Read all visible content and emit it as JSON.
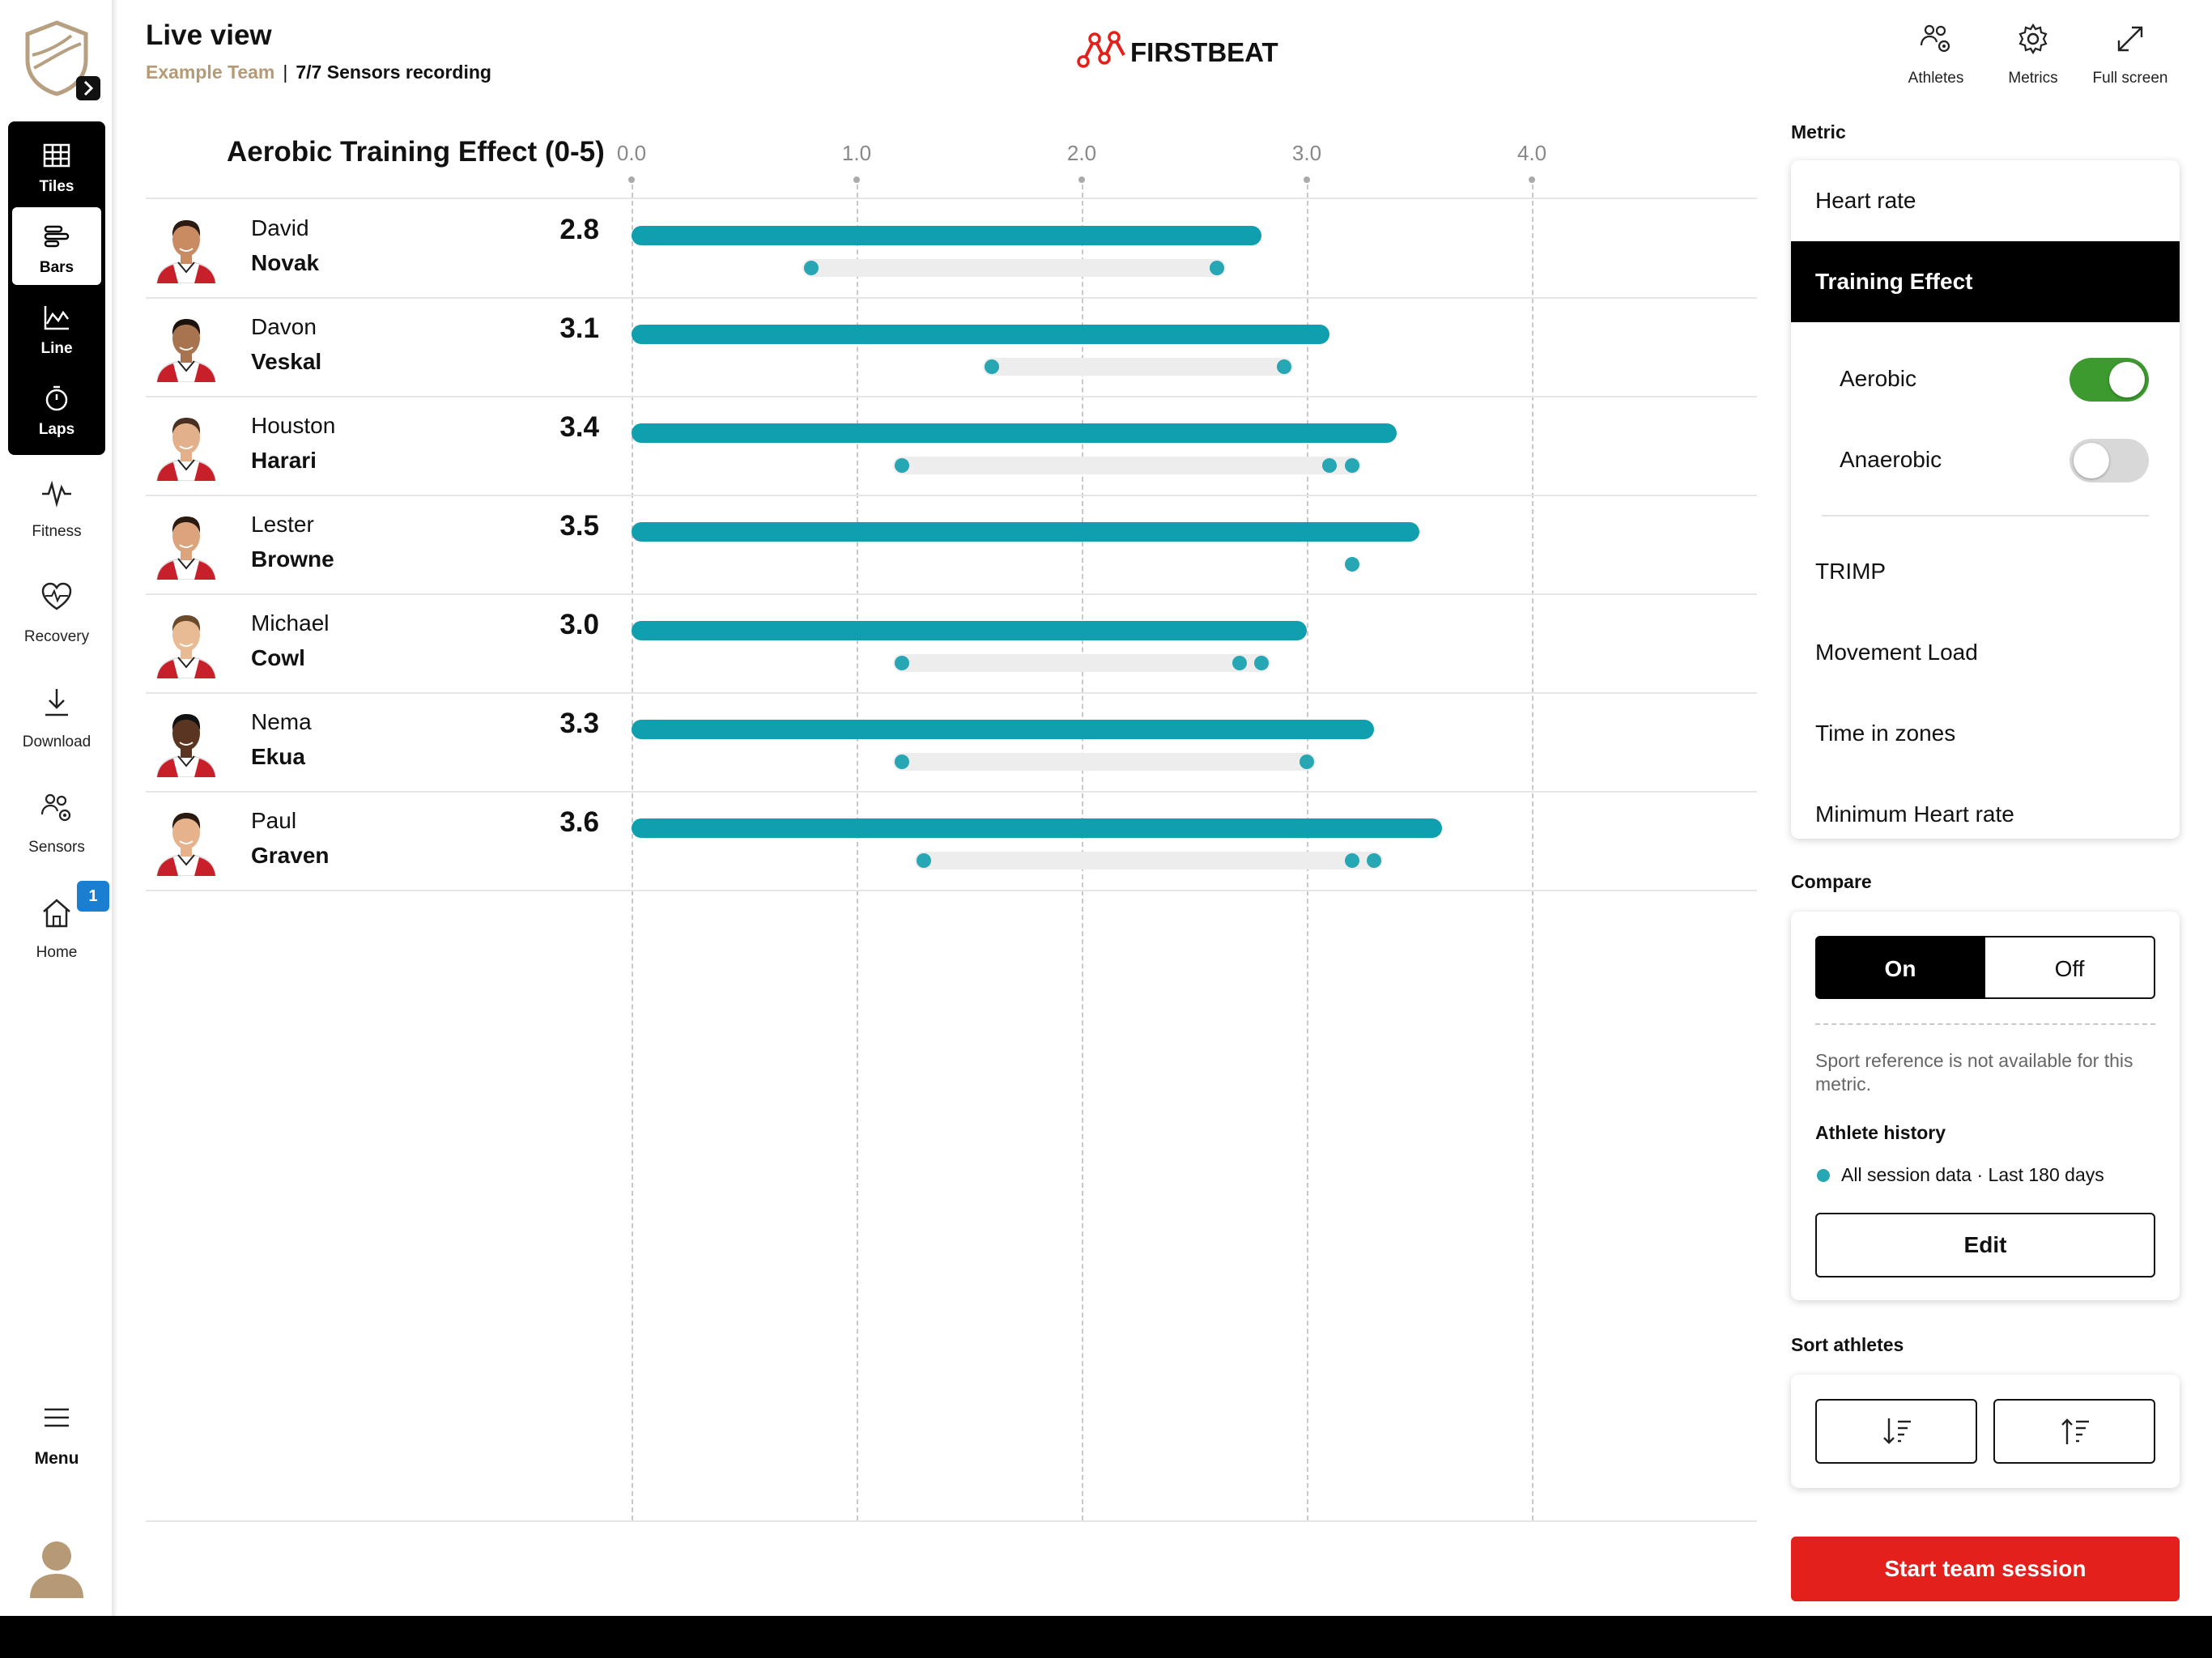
{
  "nav": {
    "views": [
      {
        "label": "Tiles",
        "icon": "grid-icon"
      },
      {
        "label": "Bars",
        "icon": "bars-icon"
      },
      {
        "label": "Line",
        "icon": "line-chart-icon"
      },
      {
        "label": "Laps",
        "icon": "stopwatch-icon"
      }
    ],
    "active_view": "Bars",
    "items": [
      {
        "label": "Fitness",
        "icon": "pulse-icon"
      },
      {
        "label": "Recovery",
        "icon": "heart-pulse-icon"
      },
      {
        "label": "Download",
        "icon": "download-icon"
      },
      {
        "label": "Sensors",
        "icon": "sensors-icon"
      },
      {
        "label": "Home",
        "icon": "home-icon",
        "badge": "1"
      }
    ],
    "menu_label": "Menu"
  },
  "header": {
    "title": "Live view",
    "team": "Example Team",
    "separator": "|",
    "sensors_status": "7/7 Sensors recording",
    "brand": "FIRSTBEAT",
    "actions": [
      {
        "label": "Athletes",
        "icon": "athletes-icon"
      },
      {
        "label": "Metrics",
        "icon": "gear-icon"
      },
      {
        "label": "Full screen",
        "icon": "fullscreen-icon"
      }
    ]
  },
  "chart_data": {
    "type": "bar",
    "title": "Aerobic Training Effect (0-5)",
    "xlim": [
      0,
      5
    ],
    "ticks": [
      "0.0",
      "1.0",
      "2.0",
      "3.0",
      "4.0"
    ],
    "tick_values": [
      0,
      1,
      2,
      3,
      4
    ],
    "orientation": "horizontal",
    "grid": "vertical dashed",
    "rows": [
      {
        "first": "David",
        "last": "Novak",
        "label": "2.8",
        "value": 2.8,
        "history_range": [
          0.8,
          2.6
        ],
        "history_points": [
          0.8,
          2.6
        ]
      },
      {
        "first": "Davon",
        "last": "Veskal",
        "label": "3.1",
        "value": 3.1,
        "history_range": [
          1.6,
          2.9
        ],
        "history_points": [
          1.6,
          2.9
        ]
      },
      {
        "first": "Houston",
        "last": "Harari",
        "label": "3.4",
        "value": 3.4,
        "history_range": [
          1.2,
          3.2
        ],
        "history_points": [
          1.2,
          3.1,
          3.2
        ]
      },
      {
        "first": "Lester",
        "last": "Browne",
        "label": "3.5",
        "value": 3.5,
        "history_range": null,
        "history_points": [
          3.2
        ]
      },
      {
        "first": "Michael",
        "last": "Cowl",
        "label": "3.0",
        "value": 3.0,
        "history_range": [
          1.2,
          2.8
        ],
        "history_points": [
          1.2,
          2.7,
          2.8
        ]
      },
      {
        "first": "Nema",
        "last": "Ekua",
        "label": "3.3",
        "value": 3.3,
        "history_range": [
          1.2,
          3.0
        ],
        "history_points": [
          1.2,
          3.0
        ]
      },
      {
        "first": "Paul",
        "last": "Graven",
        "label": "3.6",
        "value": 3.6,
        "history_range": [
          1.3,
          3.3
        ],
        "history_points": [
          1.3,
          3.2,
          3.3
        ]
      }
    ]
  },
  "panel": {
    "metric_heading": "Metric",
    "metrics": [
      "Heart rate",
      "Training Effect",
      "TRIMP",
      "Movement Load",
      "Time in zones",
      "Minimum Heart rate"
    ],
    "active_metric": "Training Effect",
    "sub_options": [
      {
        "label": "Aerobic",
        "on": true
      },
      {
        "label": "Anaerobic",
        "on": false
      }
    ],
    "compare_heading": "Compare",
    "compare_on": "On",
    "compare_off": "Off",
    "compare_selected": "On",
    "sport_ref_note": "Sport reference is not available for this metric.",
    "athlete_history_heading": "Athlete history",
    "history_legend": "All session data · Last 180 days",
    "edit_label": "Edit",
    "sort_heading": "Sort athletes",
    "sort_buttons": [
      {
        "icon": "sort-descending-icon"
      },
      {
        "icon": "sort-ascending-icon"
      }
    ],
    "start_label": "Start team session"
  },
  "colors": {
    "accent_teal": "#109fae",
    "history_dot": "#27a6b3",
    "start_red": "#e3201b",
    "toggle_on": "#3c9a2e",
    "team_gold": "#b69a76",
    "badge_blue": "#1a7fd1"
  }
}
